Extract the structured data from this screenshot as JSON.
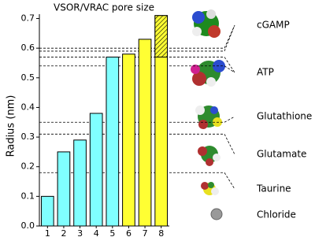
{
  "chart_data": {
    "type": "bar",
    "title": "VSOR/VRAC pore size",
    "y_label": "Radius (nm)",
    "categories": [
      "1",
      "2",
      "3",
      "4",
      "5",
      "6",
      "7",
      "8"
    ],
    "values": [
      0.1,
      0.25,
      0.29,
      0.38,
      0.57,
      0.58,
      0.63,
      0.71
    ],
    "colors": [
      "#80ffff",
      "#80ffff",
      "#80ffff",
      "#80ffff",
      "#80ffff",
      "#ffff33",
      "#ffff33",
      "#ffff33"
    ],
    "hatched_bar": {
      "index": 7,
      "from": 0.57
    },
    "ylim": [
      0,
      0.72
    ],
    "yticks": [
      {
        "value": 0,
        "label": "0.0"
      },
      0.1,
      0.2,
      0.3,
      0.4,
      0.5,
      0.6,
      0.7
    ],
    "molecules": [
      {
        "name": "cGAMP",
        "radii": [
          0.6,
          0.59
        ]
      },
      {
        "name": "ATP",
        "radii": [
          0.57,
          0.54
        ]
      },
      {
        "name": "Glutathione",
        "radii": [
          0.35
        ]
      },
      {
        "name": "Glutamate",
        "radii": [
          0.31
        ]
      },
      {
        "name": "Taurine",
        "radii": [
          0.18
        ]
      },
      {
        "name": "Chloride",
        "radii": []
      }
    ]
  }
}
